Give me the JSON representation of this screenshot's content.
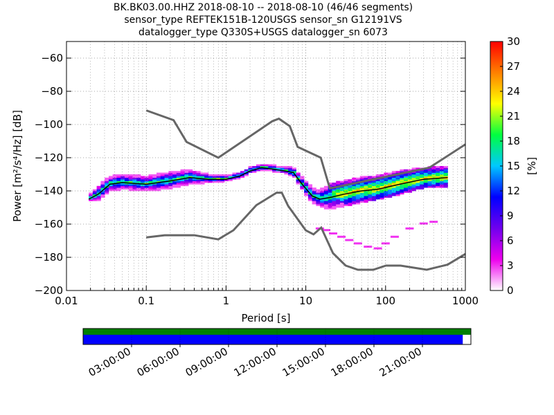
{
  "chart_data": {
    "type": "heatmap",
    "title_lines": [
      "BK.BK03.00.HHZ   2018-08-10 -- 2018-08-10  (46/46 segments)",
      "sensor_type REFTEK151B-120USGS sensor_sn G12191VS",
      "datalogger_type Q330S+USGS datalogger_sn 6073"
    ],
    "xlabel": "Period [s]",
    "ylabel": "Power [m²/s⁴/Hz] [dB]",
    "xscale": "log",
    "xlim": [
      0.01,
      1000
    ],
    "ylim": [
      -200,
      -50
    ],
    "grid": true,
    "x_ticks": [
      {
        "value": 0.01,
        "label": "0.01"
      },
      {
        "value": 0.1,
        "label": "0.1"
      },
      {
        "value": 1,
        "label": "1"
      },
      {
        "value": 10,
        "label": "10"
      },
      {
        "value": 100,
        "label": "100"
      },
      {
        "value": 1000,
        "label": "1000"
      }
    ],
    "y_ticks": [
      {
        "value": -60,
        "label": "−60"
      },
      {
        "value": -80,
        "label": "−80"
      },
      {
        "value": -100,
        "label": "−100"
      },
      {
        "value": -120,
        "label": "−120"
      },
      {
        "value": -140,
        "label": "−140"
      },
      {
        "value": -160,
        "label": "−160"
      },
      {
        "value": -180,
        "label": "−180"
      },
      {
        "value": -200,
        "label": "−200"
      }
    ],
    "colorbar": {
      "label": "[%]",
      "range": [
        0,
        30
      ],
      "ticks": [
        {
          "value": 0,
          "label": "0"
        },
        {
          "value": 3,
          "label": "3"
        },
        {
          "value": 6,
          "label": "6"
        },
        {
          "value": 9,
          "label": "9"
        },
        {
          "value": 12,
          "label": "12"
        },
        {
          "value": 15,
          "label": "15"
        },
        {
          "value": 18,
          "label": "18"
        },
        {
          "value": 21,
          "label": "21"
        },
        {
          "value": 24,
          "label": "24"
        },
        {
          "value": 27,
          "label": "27"
        },
        {
          "value": 30,
          "label": "30"
        }
      ],
      "colors": [
        "#ffffff",
        "#ee00ee",
        "#7000ee",
        "#0000ff",
        "#00c8ff",
        "#00ff40",
        "#ffff00",
        "#ff8000",
        "#ff0000"
      ]
    },
    "noise_model_high": {
      "x": [
        0.1,
        0.22,
        0.32,
        0.8,
        3.8,
        4.6,
        6.3,
        7.9,
        15.4,
        20,
        354,
        1000
      ],
      "y": [
        -91.5,
        -97.4,
        -110.5,
        -120,
        -98,
        -96.5,
        -101,
        -113.5,
        -120,
        -138.5,
        -126,
        -112
      ]
    },
    "noise_model_low": {
      "x": [
        0.1,
        0.17,
        0.4,
        0.8,
        1.24,
        2.4,
        4.3,
        5,
        6,
        10,
        12.5,
        15.6,
        21.9,
        31.6,
        45,
        70,
        101,
        154,
        328,
        600,
        1000
      ],
      "y": [
        -168,
        -166.7,
        -166.7,
        -169.2,
        -163.7,
        -148.6,
        -141.1,
        -141.1,
        -149,
        -163.8,
        -166.2,
        -162.1,
        -177.5,
        -185,
        -187.5,
        -187.5,
        -185,
        -185,
        -187.5,
        -184.4,
        -178
      ]
    },
    "median": {
      "x": [
        0.019,
        0.025,
        0.035,
        0.05,
        0.1,
        0.2,
        0.35,
        0.6,
        1,
        1.5,
        2,
        2.8,
        4,
        5.5,
        7,
        9,
        12,
        15,
        20,
        30,
        50,
        80,
        150,
        300,
        600
      ],
      "y": [
        -145,
        -142,
        -136,
        -135,
        -136,
        -134,
        -132,
        -133,
        -133,
        -131,
        -128,
        -126,
        -127,
        -128,
        -129,
        -136,
        -143,
        -145,
        -144,
        -142,
        -140,
        -139,
        -136,
        -133,
        -132
      ]
    },
    "mode_band": {
      "x": [
        0.019,
        0.025,
        0.035,
        0.05,
        0.1,
        0.2,
        0.35,
        0.6,
        1,
        1.5,
        2,
        2.8,
        4,
        5.5,
        7,
        9,
        12,
        15,
        20,
        30,
        50,
        80,
        150,
        300,
        600
      ],
      "upper": [
        -143,
        -138,
        -132,
        -132,
        -132,
        -130,
        -129,
        -131,
        -132,
        -130,
        -127,
        -125,
        -126,
        -127,
        -127,
        -133,
        -140,
        -141,
        -138,
        -136,
        -134,
        -132,
        -129,
        -127,
        -126
      ],
      "lower": [
        -146,
        -145,
        -139,
        -139,
        -139,
        -138,
        -136,
        -135,
        -135,
        -133,
        -130,
        -128,
        -129,
        -130,
        -132,
        -139,
        -147,
        -149,
        -150,
        -148,
        -146,
        -144,
        -141,
        -137,
        -136
      ]
    },
    "outliers": {
      "x": [
        15,
        18,
        22,
        28,
        35,
        45,
        60,
        80,
        100,
        130,
        200,
        300,
        400
      ],
      "y": [
        -163,
        -164,
        -166,
        -168,
        -170,
        -172,
        -174,
        -175,
        -172,
        -168,
        -163,
        -160,
        -159
      ]
    },
    "segments_scale": {
      "ticks": [
        "03:00:00",
        "06:00:00",
        "09:00:00",
        "12:00:00",
        "15:00:00",
        "18:00:00",
        "21:00:00"
      ],
      "available_color": "#008000",
      "used_color": "#0000ff",
      "available_fraction": 1.0,
      "used_fraction": 0.979
    },
    "line_color": "#666666"
  }
}
